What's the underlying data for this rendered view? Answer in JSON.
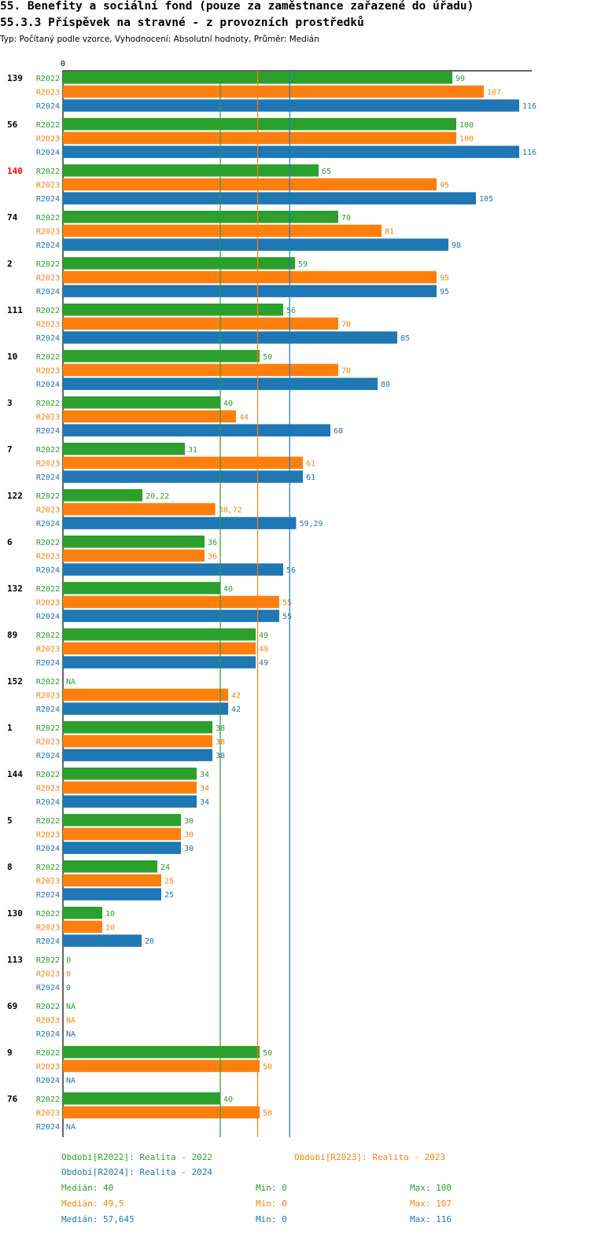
{
  "title_line1": "55. Benefity a sociální fond (pouze za zaměstnance zařazené do úřadu)",
  "title_line2": "55.3.3 Příspěvek na stravné - z provozních prostředků",
  "subtitle": "Typ: Počítaný podle vzorce, Vyhodnocení: Absolutní hodnoty, Průměr: Medián",
  "colors": {
    "R2022": "#2ca02c",
    "R2023": "#ff7f0e",
    "R2024": "#1f77b4",
    "highlight": "#ff0000"
  },
  "chart_data": {
    "type": "bar",
    "orientation": "horizontal",
    "axis_tick_label": "0",
    "xlim": [
      0,
      116
    ],
    "series_names": [
      "R2022",
      "R2023",
      "R2024"
    ],
    "highlighted_category": "140",
    "groups": [
      {
        "id": "139",
        "values": [
          {
            "v": 99,
            "label": "99"
          },
          {
            "v": 107,
            "label": "107"
          },
          {
            "v": 116,
            "label": "116"
          }
        ]
      },
      {
        "id": "56",
        "values": [
          {
            "v": 100,
            "label": "100"
          },
          {
            "v": 100,
            "label": "100"
          },
          {
            "v": 116,
            "label": "116"
          }
        ]
      },
      {
        "id": "140",
        "values": [
          {
            "v": 65,
            "label": "65"
          },
          {
            "v": 95,
            "label": "95"
          },
          {
            "v": 105,
            "label": "105"
          }
        ]
      },
      {
        "id": "74",
        "values": [
          {
            "v": 70,
            "label": "70"
          },
          {
            "v": 81,
            "label": "81"
          },
          {
            "v": 98,
            "label": "98"
          }
        ]
      },
      {
        "id": "2",
        "values": [
          {
            "v": 59,
            "label": "59"
          },
          {
            "v": 95,
            "label": "95"
          },
          {
            "v": 95,
            "label": "95"
          }
        ]
      },
      {
        "id": "111",
        "values": [
          {
            "v": 56,
            "label": "56"
          },
          {
            "v": 70,
            "label": "70"
          },
          {
            "v": 85,
            "label": "85"
          }
        ]
      },
      {
        "id": "10",
        "values": [
          {
            "v": 50,
            "label": "50"
          },
          {
            "v": 70,
            "label": "70"
          },
          {
            "v": 80,
            "label": "80"
          }
        ]
      },
      {
        "id": "3",
        "values": [
          {
            "v": 40,
            "label": "40"
          },
          {
            "v": 44,
            "label": "44"
          },
          {
            "v": 68,
            "label": "68"
          }
        ]
      },
      {
        "id": "7",
        "values": [
          {
            "v": 31,
            "label": "31"
          },
          {
            "v": 61,
            "label": "61"
          },
          {
            "v": 61,
            "label": "61"
          }
        ]
      },
      {
        "id": "122",
        "values": [
          {
            "v": 20.22,
            "label": "20,22"
          },
          {
            "v": 38.72,
            "label": "38,72"
          },
          {
            "v": 59.29,
            "label": "59,29"
          }
        ]
      },
      {
        "id": "6",
        "values": [
          {
            "v": 36,
            "label": "36"
          },
          {
            "v": 36,
            "label": "36"
          },
          {
            "v": 56,
            "label": "56"
          }
        ]
      },
      {
        "id": "132",
        "values": [
          {
            "v": 40,
            "label": "40"
          },
          {
            "v": 55,
            "label": "55"
          },
          {
            "v": 55,
            "label": "55"
          }
        ]
      },
      {
        "id": "89",
        "values": [
          {
            "v": 49,
            "label": "49"
          },
          {
            "v": 49,
            "label": "49"
          },
          {
            "v": 49,
            "label": "49"
          }
        ]
      },
      {
        "id": "152",
        "values": [
          {
            "v": null,
            "label": "NA"
          },
          {
            "v": 42,
            "label": "42"
          },
          {
            "v": 42,
            "label": "42"
          }
        ]
      },
      {
        "id": "1",
        "values": [
          {
            "v": 38,
            "label": "38"
          },
          {
            "v": 38,
            "label": "38"
          },
          {
            "v": 38,
            "label": "38"
          }
        ]
      },
      {
        "id": "144",
        "values": [
          {
            "v": 34,
            "label": "34"
          },
          {
            "v": 34,
            "label": "34"
          },
          {
            "v": 34,
            "label": "34"
          }
        ]
      },
      {
        "id": "5",
        "values": [
          {
            "v": 30,
            "label": "30"
          },
          {
            "v": 30,
            "label": "30"
          },
          {
            "v": 30,
            "label": "30"
          }
        ]
      },
      {
        "id": "8",
        "values": [
          {
            "v": 24,
            "label": "24"
          },
          {
            "v": 25,
            "label": "25"
          },
          {
            "v": 25,
            "label": "25"
          }
        ]
      },
      {
        "id": "130",
        "values": [
          {
            "v": 10,
            "label": "10"
          },
          {
            "v": 10,
            "label": "10"
          },
          {
            "v": 20,
            "label": "20"
          }
        ]
      },
      {
        "id": "113",
        "values": [
          {
            "v": 0,
            "label": "0"
          },
          {
            "v": 0,
            "label": "0"
          },
          {
            "v": 0,
            "label": "0"
          }
        ]
      },
      {
        "id": "69",
        "values": [
          {
            "v": null,
            "label": "NA"
          },
          {
            "v": null,
            "label": "NA"
          },
          {
            "v": null,
            "label": "NA"
          }
        ]
      },
      {
        "id": "9",
        "values": [
          {
            "v": 50,
            "label": "50"
          },
          {
            "v": 50,
            "label": "50"
          },
          {
            "v": null,
            "label": "NA"
          }
        ]
      },
      {
        "id": "76",
        "values": [
          {
            "v": 40,
            "label": "40"
          },
          {
            "v": 50,
            "label": "50"
          },
          {
            "v": null,
            "label": "NA"
          }
        ]
      }
    ],
    "median_lines": [
      {
        "series": "R2022",
        "value": 40
      },
      {
        "series": "R2023",
        "value": 49.5
      },
      {
        "series": "R2024",
        "value": 57.645
      }
    ]
  },
  "legend": {
    "period_2022": "Období[R2022]: Realita - 2022",
    "period_2023": "Období[R2023]: Realita - 2023",
    "period_2024": "Období[R2024]: Realita - 2024",
    "stats": [
      {
        "median": "Medián: 40",
        "min": "Min: 0",
        "max": "Max: 100"
      },
      {
        "median": "Medián: 49,5",
        "min": "Min: 0",
        "max": "Max: 107"
      },
      {
        "median": "Medián: 57,645",
        "min": "Min: 0",
        "max": "Max: 116"
      }
    ]
  }
}
